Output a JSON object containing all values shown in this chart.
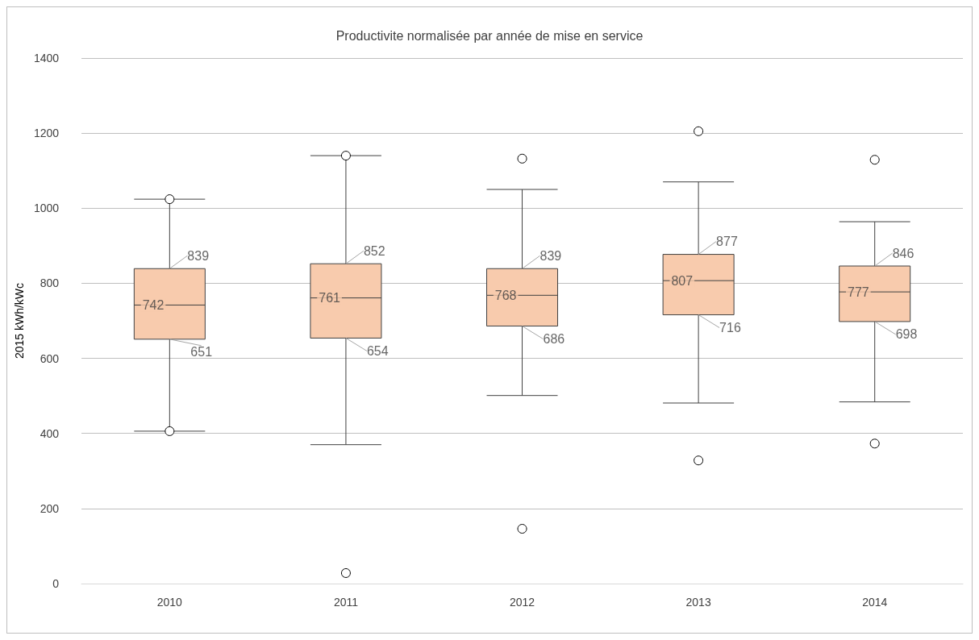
{
  "chart_data": {
    "type": "box",
    "title": "Productivite normalisée par année de mise en service",
    "ylabel": "2015 kWh/kWc",
    "categories": [
      "2010",
      "2011",
      "2012",
      "2013",
      "2014"
    ],
    "boxes": [
      {
        "low": 406,
        "q1": 651,
        "median": 742,
        "q3": 839,
        "high": 1024,
        "outliers": [
          406,
          1024
        ]
      },
      {
        "low": 370,
        "q1": 654,
        "median": 761,
        "q3": 852,
        "high": 1140,
        "outliers": [
          28,
          1140
        ]
      },
      {
        "low": 501,
        "q1": 686,
        "median": 768,
        "q3": 839,
        "high": 1050,
        "outliers": [
          146,
          1132
        ]
      },
      {
        "low": 481,
        "q1": 716,
        "median": 807,
        "q3": 877,
        "high": 1070,
        "outliers": [
          328,
          1205
        ]
      },
      {
        "low": 484,
        "q1": 698,
        "median": 777,
        "q3": 846,
        "high": 964,
        "outliers": [
          373,
          1129
        ]
      }
    ],
    "annotations": [
      {
        "text": "839",
        "x": "2010",
        "y": 839
      },
      {
        "text": "742",
        "x": "2010",
        "y": 742
      },
      {
        "text": "651",
        "x": "2010",
        "y": 651
      },
      {
        "text": "852",
        "x": "2011",
        "y": 852
      },
      {
        "text": "761",
        "x": "2011",
        "y": 761
      },
      {
        "text": "654",
        "x": "2011",
        "y": 654
      },
      {
        "text": "839",
        "x": "2012",
        "y": 839
      },
      {
        "text": "768",
        "x": "2012",
        "y": 768
      },
      {
        "text": "686",
        "x": "2012",
        "y": 686
      },
      {
        "text": "877",
        "x": "2013",
        "y": 877
      },
      {
        "text": "807",
        "x": "2013",
        "y": 807
      },
      {
        "text": "716",
        "x": "2013",
        "y": 716
      },
      {
        "text": "846",
        "x": "2014",
        "y": 846
      },
      {
        "text": "777",
        "x": "2014",
        "y": 777
      },
      {
        "text": "698",
        "x": "2014",
        "y": 698
      }
    ],
    "color": "#f8cbad",
    "ylim": [
      0,
      1400
    ],
    "yticks": [
      0,
      200,
      400,
      600,
      800,
      1000,
      1200,
      1400
    ],
    "grid": "y"
  }
}
